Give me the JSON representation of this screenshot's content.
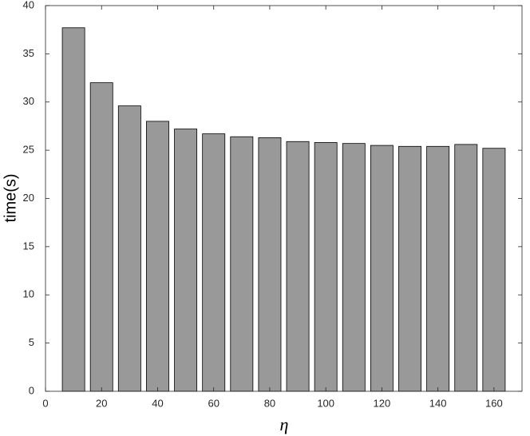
{
  "chart_data": {
    "type": "bar",
    "x_label": "η",
    "y_label": "time(s)",
    "x": [
      10,
      20,
      30,
      40,
      50,
      60,
      70,
      80,
      90,
      100,
      110,
      120,
      130,
      140,
      150,
      160
    ],
    "values": [
      37.7,
      32.0,
      29.6,
      28.0,
      27.2,
      26.7,
      26.4,
      26.3,
      25.9,
      25.8,
      25.7,
      25.5,
      25.4,
      25.4,
      25.6,
      25.2
    ],
    "color": "#999999",
    "xlim": [
      0,
      170
    ],
    "xticks": [
      0,
      20,
      40,
      60,
      80,
      100,
      120,
      140,
      160
    ],
    "ylim": [
      0,
      40
    ],
    "yticks": [
      0,
      5,
      10,
      15,
      20,
      25,
      30,
      35,
      40
    ],
    "grid": false
  }
}
